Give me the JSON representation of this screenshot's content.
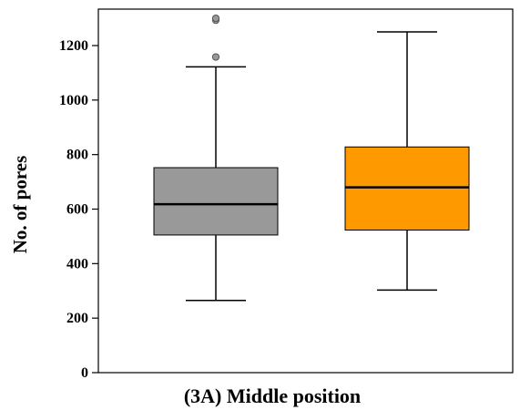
{
  "chart_data": {
    "type": "box",
    "title": "(3A) Middle position",
    "ylabel": "No. of pores",
    "xlabel": "",
    "ylim": [
      0,
      1330
    ],
    "yticks": [
      0,
      200,
      400,
      600,
      800,
      1000,
      1200
    ],
    "grid": false,
    "boxes": [
      {
        "min": 265,
        "q1": 505,
        "median": 618,
        "q3": 752,
        "max": 1122,
        "outliers": [
          1293,
          1300,
          1158
        ],
        "color": "#999999"
      },
      {
        "min": 303,
        "q1": 523,
        "median": 680,
        "q3": 828,
        "max": 1250,
        "outliers": [],
        "color": "#ff9900"
      }
    ]
  }
}
